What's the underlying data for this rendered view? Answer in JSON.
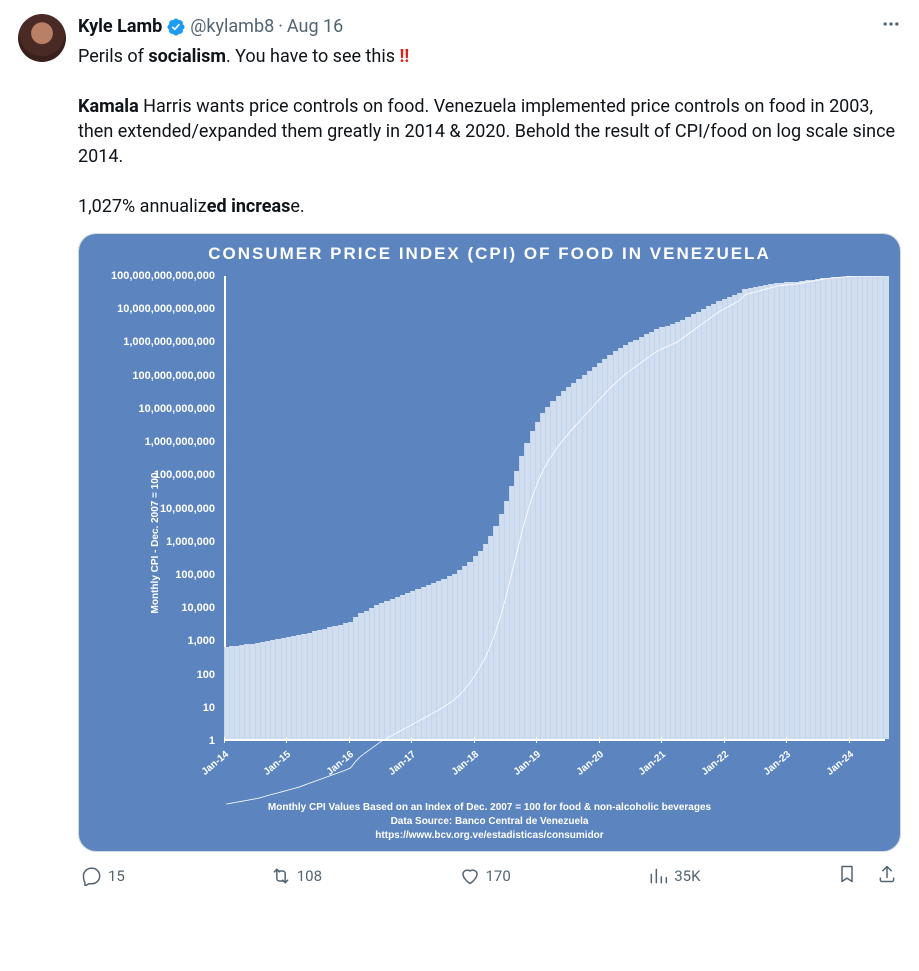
{
  "author": {
    "name": "Kyle Lamb",
    "handle": "@kylamb8",
    "date": "Aug 16"
  },
  "text": {
    "line1_pre": "Perils of ",
    "line1_bold": "socialism",
    "line1_post": ". You have to see this ",
    "exclaim": "‼",
    "para_bold": "Kamala",
    "para_rest": " Harris wants price controls on food. Venezuela implemented price controls on food in 2003, then extended/expanded them greatly in 2014 & 2020. Behold the result of CPI/food on log scale since 2014.",
    "stat_pre": "1,027% annualiz",
    "stat_bold": "ed increas",
    "stat_post": "e."
  },
  "chart": {
    "type": "bar-line-log",
    "title": "CONSUMER PRICE INDEX (CPI) OF FOOD IN VENEZUELA",
    "ylabel": "Monthly CPI - Dec. 2007 = 100",
    "background_color": "#5c84bf",
    "bar_color": "#d0def0",
    "line_color": "#ffffff",
    "axis_color": "#ffffff",
    "tick_fontsize": 11,
    "yticks": [
      "100,000,000,000,000",
      "10,000,000,000,000",
      "1,000,000,000,000",
      "100,000,000,000",
      "10,000,000,000",
      "1,000,000,000",
      "100,000,000",
      "10,000,000",
      "1,000,000",
      "100,000",
      "10,000",
      "1,000",
      "100",
      "10",
      "1"
    ],
    "ylog_min": 0,
    "ylog_max": 15,
    "xticks": [
      "Jan-14",
      "Jan-15",
      "Jan-16",
      "Jan-17",
      "Jan-18",
      "Jan-19",
      "Jan-20",
      "Jan-21",
      "Jan-22",
      "Jan-23",
      "Jan-24"
    ],
    "n_points": 128,
    "log10_values": [
      2.78,
      2.8,
      2.82,
      2.84,
      2.86,
      2.88,
      2.9,
      2.93,
      2.96,
      2.99,
      3.02,
      3.05,
      3.08,
      3.11,
      3.14,
      3.18,
      3.22,
      3.26,
      3.3,
      3.34,
      3.38,
      3.42,
      3.46,
      3.5,
      3.55,
      3.69,
      3.8,
      3.88,
      3.96,
      4.04,
      4.12,
      4.18,
      4.24,
      4.3,
      4.36,
      4.42,
      4.48,
      4.54,
      4.6,
      4.66,
      4.72,
      4.78,
      4.85,
      4.92,
      5.0,
      5.1,
      5.22,
      5.36,
      5.52,
      5.7,
      5.9,
      6.15,
      6.45,
      6.8,
      7.2,
      7.65,
      8.1,
      8.55,
      8.95,
      9.3,
      9.6,
      9.85,
      10.05,
      10.22,
      10.38,
      10.52,
      10.65,
      10.78,
      10.9,
      11.02,
      11.14,
      11.26,
      11.38,
      11.5,
      11.62,
      11.72,
      11.82,
      11.92,
      12.0,
      12.08,
      12.16,
      12.24,
      12.32,
      12.4,
      12.45,
      12.5,
      12.55,
      12.6,
      12.68,
      12.76,
      12.84,
      12.92,
      13.0,
      13.08,
      13.16,
      13.24,
      13.3,
      13.36,
      13.42,
      13.48,
      13.6,
      13.63,
      13.66,
      13.69,
      13.72,
      13.75,
      13.78,
      13.8,
      13.81,
      13.82,
      13.83,
      13.85,
      13.87,
      13.89,
      13.91,
      13.93,
      13.95,
      13.96,
      13.97,
      13.98,
      13.99,
      14.0,
      14.01,
      14.02,
      14.03,
      14.04,
      14.05,
      14.06
    ],
    "caption1": "Monthly CPI Values Based on an Index of Dec. 2007 = 100 for food & non-alcoholic beverages",
    "caption2": "Data Source: Banco Central de Venezuela",
    "caption3": "https://www.bcv.org.ve/estadisticas/consumidor"
  },
  "actions": {
    "replies": "15",
    "retweets": "108",
    "likes": "170",
    "views": "35K"
  }
}
